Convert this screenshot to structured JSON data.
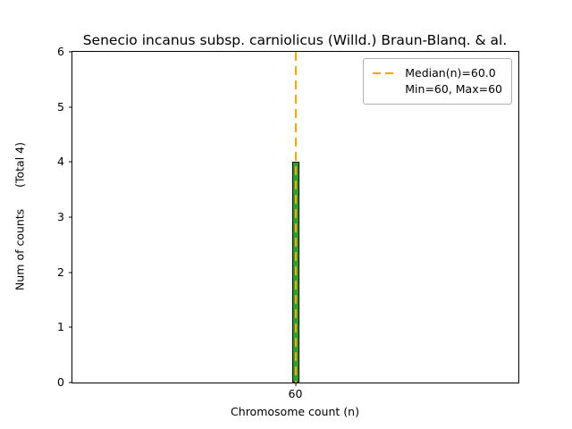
{
  "chart_data": {
    "type": "bar",
    "title": "Senecio incanus subsp. carniolicus (Willd.) Braun-Blanq. & al.",
    "xlabel": "Chromosome count (n)",
    "ylabel": "Num of counts      (Total 4)",
    "categories": [
      "60"
    ],
    "values": [
      4
    ],
    "ylim": [
      0,
      6
    ],
    "yticks": [
      0,
      1,
      2,
      3,
      4,
      5,
      6
    ],
    "bar_color": "#2ca02c",
    "bar_edge_color": "#000000",
    "median_line": {
      "x": "60",
      "value_label": "60.0",
      "color": "#ffa500",
      "style": "dashed"
    },
    "legend": {
      "lines": [
        "Median(n)=60.0",
        "Min=60, Max=60"
      ],
      "handle_color": "#ffa500",
      "position": "upper right"
    },
    "grid": false
  }
}
